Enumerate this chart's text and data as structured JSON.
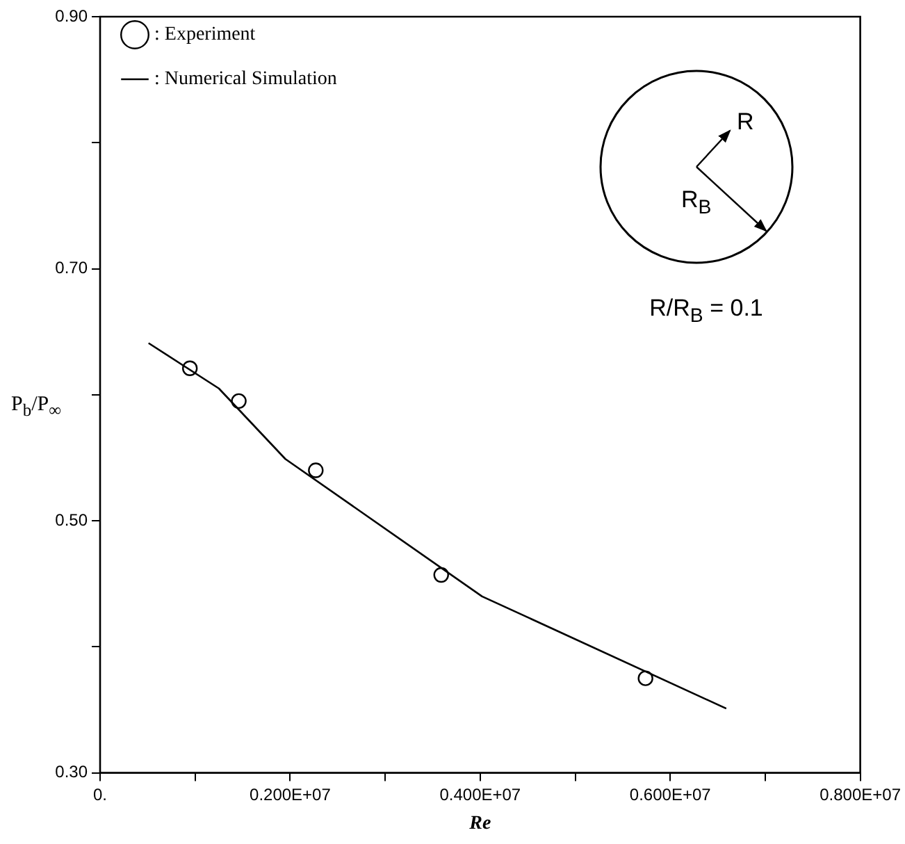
{
  "chart_data": {
    "type": "scatter",
    "xlabel": "Re",
    "ylabel": "P$_{b}$/P$_{∞}$",
    "xlim": [
      0,
      8000000
    ],
    "xticks": [
      {
        "value": 0,
        "label": "0."
      },
      {
        "value": 1000000,
        "label": null
      },
      {
        "value": 2000000,
        "label": "0.200E+07"
      },
      {
        "value": 3000000,
        "label": null
      },
      {
        "value": 4000000,
        "label": "0.400E+07"
      },
      {
        "value": 5000000,
        "label": null
      },
      {
        "value": 6000000,
        "label": "0.600E+07"
      },
      {
        "value": 7000000,
        "label": null
      },
      {
        "value": 8000000,
        "label": "0.800E+07"
      }
    ],
    "ylim": [
      0.3,
      0.9
    ],
    "yticks": [
      {
        "value": 0.3,
        "label": "0.30"
      },
      {
        "value": 0.4,
        "label": null
      },
      {
        "value": 0.5,
        "label": "0.50"
      },
      {
        "value": 0.6,
        "label": null
      },
      {
        "value": 0.7,
        "label": "0.70"
      },
      {
        "value": 0.8,
        "label": null
      },
      {
        "value": 0.9,
        "label": "0.90"
      }
    ],
    "grid": false,
    "legend": "top left",
    "series": [
      {
        "name": ": Experiment",
        "color": "#000000",
        "marker": "circle",
        "x": [
          945000,
          1460000,
          2270000,
          3590000,
          5740000
        ],
        "values": [
          0.621,
          0.595,
          0.54,
          0.457,
          0.375
        ]
      },
      {
        "name": ": Numerical Simulation",
        "type": "line",
        "color": "#000000",
        "marker": "none",
        "line_style": "solid",
        "x": [
          510000,
          1250000,
          1950000,
          4020000,
          6590000
        ],
        "values": [
          0.641,
          0.605,
          0.549,
          0.44,
          0.351
        ]
      }
    ],
    "annotations": [
      "R",
      "R$_{B}$",
      "R/R$_{B}$ = 0.1"
    ]
  }
}
